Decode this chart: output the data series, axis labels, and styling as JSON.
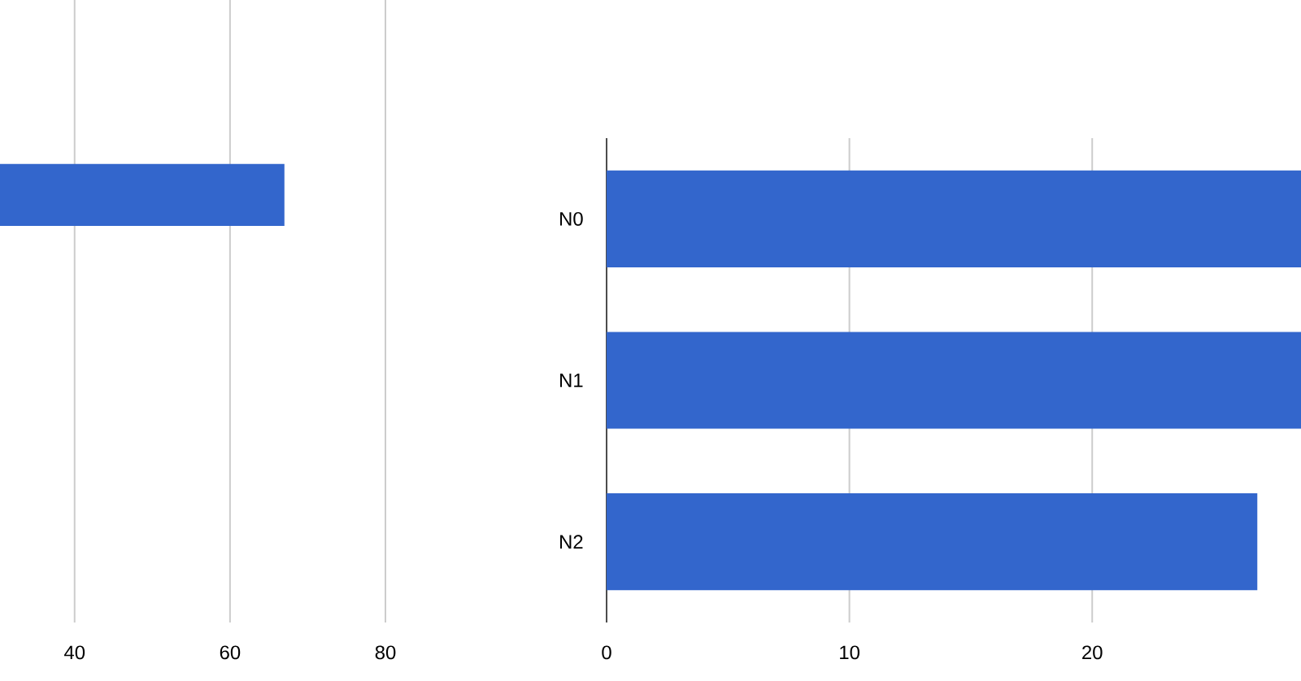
{
  "chart_data": [
    {
      "type": "bar",
      "orientation": "horizontal",
      "categories": [
        null
      ],
      "values": [
        67
      ],
      "color": "#3366cc",
      "xlim": [
        30.4,
        80
      ],
      "xticks": [
        40,
        60,
        80
      ],
      "grid": "x",
      "tick_labels": "x"
    },
    {
      "type": "bar",
      "orientation": "horizontal",
      "categories": [
        "N0",
        "N1",
        "N2"
      ],
      "values": [
        28.6,
        28.6,
        26.8
      ],
      "color": "#3366cc",
      "xlim": [
        0,
        28.6
      ],
      "xticks": [
        0,
        10,
        20
      ],
      "grid": "x"
    }
  ]
}
